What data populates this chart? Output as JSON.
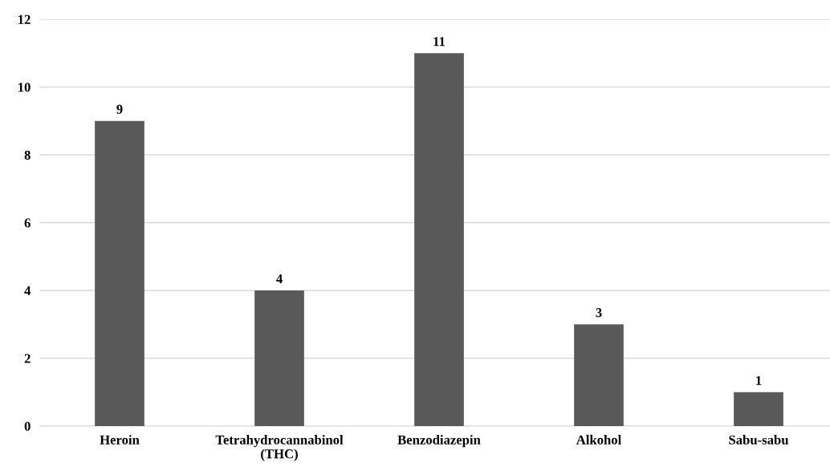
{
  "chart_data": {
    "type": "bar",
    "categories": [
      "Heroin",
      "Tetrahydrocannabinol\n(THC)",
      "Benzodiazepin",
      "Alkohol",
      "Sabu-sabu"
    ],
    "values": [
      9,
      4,
      11,
      3,
      1
    ],
    "color": "#595959",
    "ylim": [
      0,
      12
    ],
    "yticks": [
      0,
      2,
      4,
      6,
      8,
      10,
      12
    ],
    "grid": "y",
    "data_labels": true
  }
}
